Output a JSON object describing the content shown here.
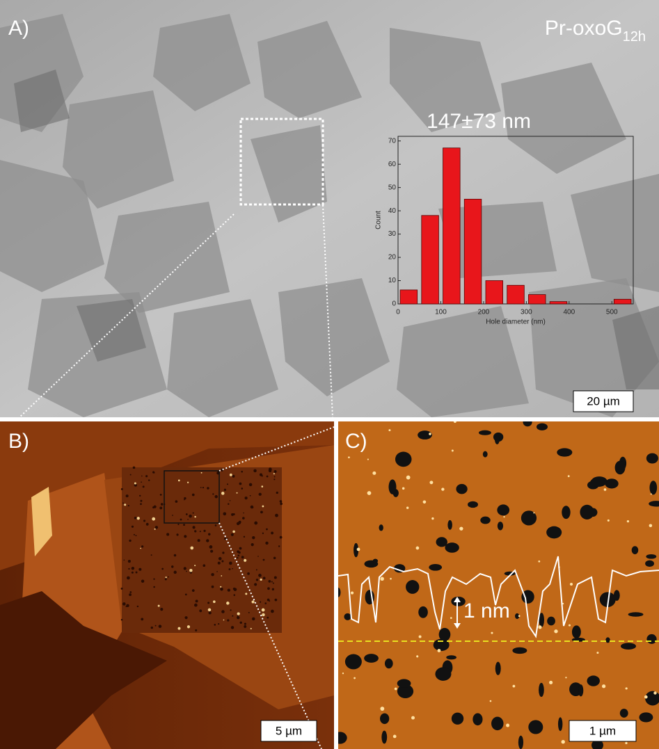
{
  "panels": {
    "a": {
      "label": "A)",
      "sample": "Pr-oxoG",
      "sample_subscript": "12h",
      "scale_bar": "20 µm"
    },
    "b": {
      "label": "B)",
      "scale_bar": "5 µm"
    },
    "c": {
      "label": "C)",
      "profile_height": "1 nm",
      "scale_bar": "1 µm"
    }
  },
  "chart_data": {
    "type": "histogram",
    "title": "147±73 nm",
    "x_label": "Hole diameter (nm)",
    "y_label": "Count",
    "bins": [
      0,
      50,
      100,
      150,
      200,
      250,
      300,
      350,
      400,
      450,
      500,
      550
    ],
    "values": [
      6,
      38,
      67,
      45,
      10,
      8,
      4,
      1,
      0,
      0,
      2
    ],
    "color": "#e8161b",
    "xlim": [
      0,
      550
    ],
    "ylim": [
      0,
      72
    ],
    "xticks": [
      0,
      100,
      200,
      300,
      400,
      500
    ],
    "yticks": [
      0,
      10,
      20,
      30,
      40,
      50,
      60,
      70
    ]
  }
}
